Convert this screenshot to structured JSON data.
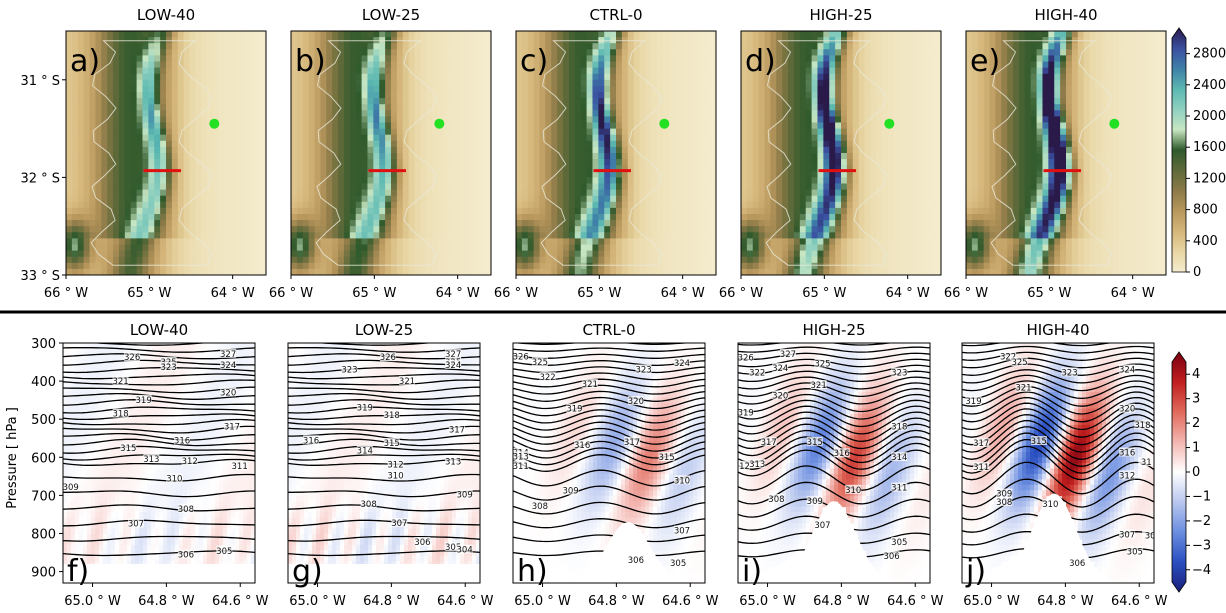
{
  "chart_data": [
    {
      "type": "heatmap",
      "description_group": "terrain",
      "xlabel": "",
      "ylabel": "",
      "x_tick_labels": [
        "66 ° W",
        "65 ° W",
        "64 ° W"
      ],
      "y_tick_labels": [
        "31 ° S",
        "32 ° S",
        "33 ° S"
      ],
      "x_range": [
        -66,
        -63.6
      ],
      "y_range": [
        -33,
        -30.5
      ],
      "colorbar": {
        "ticks": [
          "0",
          "400",
          "800",
          "1200",
          "1600",
          "2000",
          "2400",
          "2800"
        ],
        "range": [
          0,
          3000
        ],
        "colors": [
          "#f4ecce",
          "#c9a66b",
          "#6a6a3a",
          "#2e5a2a",
          "#c8e6c2",
          "#5bb8b0",
          "#3a4fa0",
          "#2a1a4a"
        ]
      },
      "panels": [
        {
          "title": "LOW-40",
          "label": "a)",
          "peak_height": 1300
        },
        {
          "title": "LOW-25",
          "label": "b)",
          "peak_height": 1450
        },
        {
          "title": "CTRL-0",
          "label": "c)",
          "peak_height": 2000
        },
        {
          "title": "HIGH-25",
          "label": "d)",
          "peak_height": 2500
        },
        {
          "title": "HIGH-40",
          "label": "e)",
          "peak_height": 2800
        }
      ],
      "marker_color": "#22e022",
      "section_line_color": "#e01010"
    },
    {
      "type": "heatmap",
      "description_group": "cross-section",
      "ylabel": "Pressure [ hPa ]",
      "x_tick_labels": [
        "65.0 ° W",
        "64.8 ° W",
        "64.6 ° W"
      ],
      "y_tick_labels": [
        "300",
        "400",
        "500",
        "600",
        "700",
        "800",
        "900"
      ],
      "y_range": [
        300,
        930
      ],
      "x_range": [
        -65.08,
        -64.56
      ],
      "colorbar": {
        "ticks": [
          "4",
          "3",
          "2",
          "1",
          "0",
          "−1",
          "−2",
          "−3",
          "−4"
        ],
        "range": [
          -4.5,
          4.5
        ]
      },
      "panels": [
        {
          "title": "LOW-40",
          "label": "f)",
          "anomaly_amp": 0.6,
          "contour_labels": [
            [
              "326",
              340,
              0.36
            ],
            [
              "327",
              331,
              0.86
            ],
            [
              "325",
              352,
              0.55
            ],
            [
              "324",
              360,
              0.86
            ],
            [
              "323",
              366,
              0.55
            ],
            [
              "321",
              402,
              0.3
            ],
            [
              "320",
              432,
              0.86
            ],
            [
              "319",
              452,
              0.42
            ],
            [
              "318",
              488,
              0.3
            ],
            [
              "317",
              522,
              0.88
            ],
            [
              "316",
              558,
              0.62
            ],
            [
              "315",
              578,
              0.34
            ],
            [
              "313",
              607,
              0.46
            ],
            [
              "312",
              613,
              0.66
            ],
            [
              "311",
              626,
              0.92
            ],
            [
              "310",
              658,
              0.58
            ],
            [
              "309",
              680,
              0.04
            ],
            [
              "308",
              738,
              0.64
            ],
            [
              "307",
              776,
              0.38
            ],
            [
              "306",
              858,
              0.64
            ],
            [
              "305",
              848,
              0.84
            ]
          ]
        },
        {
          "title": "LOW-25",
          "label": "g)",
          "anomaly_amp": 0.9,
          "contour_labels": [
            [
              "326",
              340,
              0.52
            ],
            [
              "327",
              331,
              0.86
            ],
            [
              "325",
              352,
              0.86
            ],
            [
              "324",
              360,
              0.86
            ],
            [
              "323",
              372,
              0.32
            ],
            [
              "321",
              402,
              0.62
            ],
            [
              "319",
              472,
              0.4
            ],
            [
              "318",
              492,
              0.54
            ],
            [
              "317",
              530,
              0.88
            ],
            [
              "316",
              558,
              0.12
            ],
            [
              "315",
              565,
              0.54
            ],
            [
              "314",
              585,
              0.4
            ],
            [
              "313",
              614,
              0.86
            ],
            [
              "312",
              622,
              0.56
            ],
            [
              "310",
              650,
              0.56
            ],
            [
              "309",
              700,
              0.92
            ],
            [
              "308",
              725,
              0.42
            ],
            [
              "307",
              775,
              0.58
            ],
            [
              "306",
              825,
              0.7
            ],
            [
              "305",
              838,
              0.86
            ],
            [
              "304",
              845,
              0.92
            ]
          ]
        },
        {
          "title": "CTRL-0",
          "label": "h)",
          "anomaly_amp": 2.0,
          "contour_labels": [
            [
              "326",
              338,
              0.04
            ],
            [
              "325",
              353,
              0.14
            ],
            [
              "324",
              355,
              0.88
            ],
            [
              "323",
              372,
              0.68
            ],
            [
              "322",
              392,
              0.18
            ],
            [
              "321",
              410,
              0.4
            ],
            [
              "320",
              455,
              0.64
            ],
            [
              "319",
              475,
              0.32
            ],
            [
              "317",
              562,
              0.62
            ],
            [
              "316",
              570,
              0.36
            ],
            [
              "315",
              602,
              0.8
            ],
            [
              "314",
              590,
              0.04
            ],
            [
              "313",
              600,
              0.04
            ],
            [
              "311",
              625,
              0.04
            ],
            [
              "310",
              663,
              0.88
            ],
            [
              "309",
              690,
              0.3
            ],
            [
              "308",
              730,
              0.14
            ],
            [
              "307",
              795,
              0.88
            ],
            [
              "306",
              872,
              0.64
            ],
            [
              "305",
              880,
              0.86
            ]
          ]
        },
        {
          "title": "HIGH-25",
          "label": "i)",
          "anomaly_amp": 3.0,
          "contour_labels": [
            [
              "326",
              341,
              0.04
            ],
            [
              "327",
              331,
              0.26
            ],
            [
              "325",
              356,
              0.44
            ],
            [
              "324",
              368,
              0.22
            ],
            [
              "323",
              380,
              0.84
            ],
            [
              "322",
              380,
              0.1
            ],
            [
              "321",
              413,
              0.42
            ],
            [
              "320",
              440,
              0.22
            ],
            [
              "319",
              485,
              0.04
            ],
            [
              "318",
              522,
              0.84
            ],
            [
              "317",
              562,
              0.16
            ],
            [
              "316",
              592,
              0.54
            ],
            [
              "315",
              562,
              0.4
            ],
            [
              "314",
              602,
              0.84
            ],
            [
              "313",
              620,
              0.1
            ],
            [
              "312",
              625,
              0.02
            ],
            [
              "311",
              682,
              0.84
            ],
            [
              "310",
              688,
              0.6
            ],
            [
              "309",
              718,
              0.4
            ],
            [
              "308",
              712,
              0.2
            ],
            [
              "307",
              780,
              0.44
            ],
            [
              "306",
              862,
              0.8
            ],
            [
              "305",
              825,
              0.84
            ]
          ]
        },
        {
          "title": "HIGH-40",
          "label": "j)",
          "anomaly_amp": 4.3,
          "contour_labels": [
            [
              "322",
              338,
              0.24
            ],
            [
              "325",
              353,
              0.3
            ],
            [
              "324",
              372,
              0.86
            ],
            [
              "323",
              380,
              0.56
            ],
            [
              "321",
              420,
              0.32
            ],
            [
              "320",
              475,
              0.86
            ],
            [
              "319",
              455,
              0.06
            ],
            [
              "318",
              518,
              0.94
            ],
            [
              "317",
              565,
              0.1
            ],
            [
              "316",
              590,
              0.86
            ],
            [
              "315",
              560,
              0.4
            ],
            [
              "31",
              615,
              0.96
            ],
            [
              "312",
              650,
              0.86
            ],
            [
              "311",
              628,
              0.1
            ],
            [
              "310",
              725,
              0.46
            ],
            [
              "309",
              698,
              0.22
            ],
            [
              "308",
              720,
              0.22
            ],
            [
              "307",
              805,
              0.86
            ],
            [
              "305",
              850,
              0.9
            ],
            [
              "306",
              880,
              0.6
            ],
            [
              "30",
              808,
              0.98
            ]
          ]
        }
      ]
    }
  ]
}
